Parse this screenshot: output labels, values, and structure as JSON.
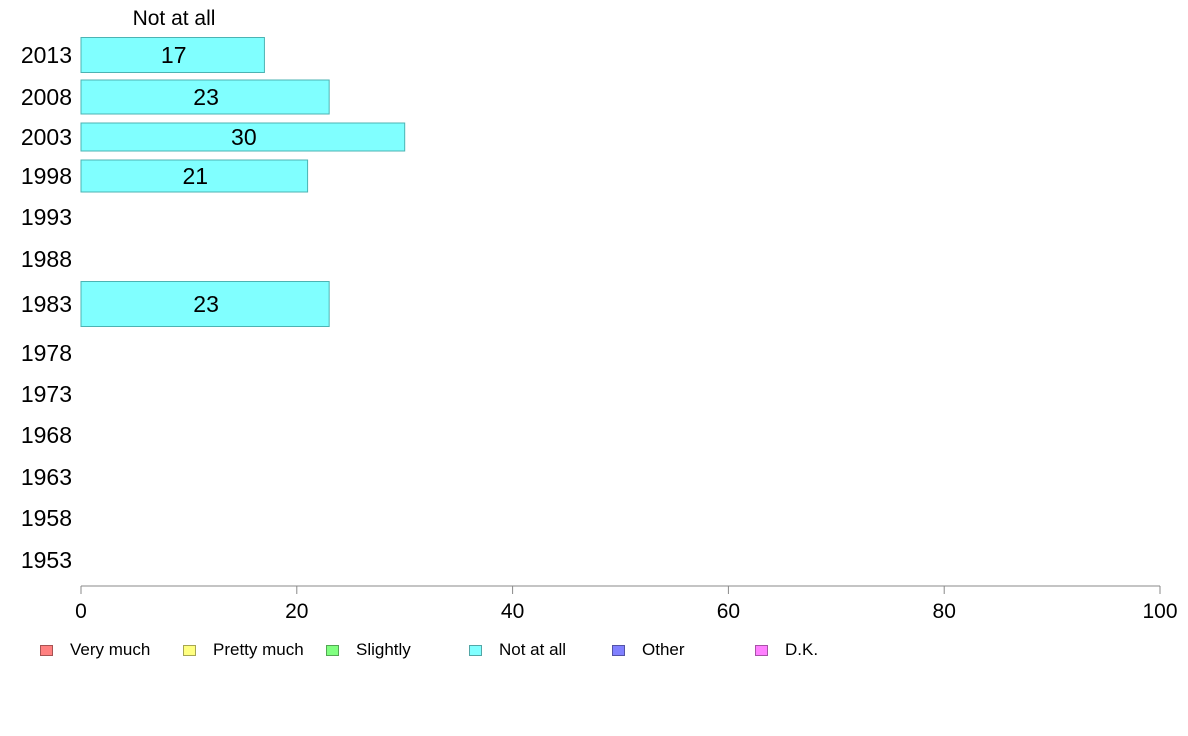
{
  "chart_data": {
    "type": "bar",
    "orientation": "horizontal",
    "series_label": "Not at all",
    "categories": [
      "2013",
      "2008",
      "2003",
      "1998",
      "1993",
      "1988",
      "1983",
      "1978",
      "1973",
      "1968",
      "1963",
      "1958",
      "1953"
    ],
    "values": [
      17,
      23,
      30,
      21,
      null,
      null,
      23,
      null,
      null,
      null,
      null,
      null,
      null
    ],
    "data_labels": [
      "17",
      "23",
      "30",
      "21",
      "",
      "",
      "23",
      "",
      "",
      "",
      "",
      "",
      ""
    ],
    "xlim": [
      0,
      100
    ],
    "x_ticks": [
      "0",
      "20",
      "40",
      "60",
      "80",
      "100"
    ],
    "bar_color": "#80ffff",
    "bar_border_color": "#4cb3b3",
    "axis_color": "#888888",
    "legend_position": "bottom",
    "legend": [
      {
        "label": "Very much",
        "color": "#ff8080"
      },
      {
        "label": "Pretty much",
        "color": "#ffff80"
      },
      {
        "label": "Slightly",
        "color": "#80ff80"
      },
      {
        "label": "Not at all",
        "color": "#80ffff"
      },
      {
        "label": "Other",
        "color": "#8080ff"
      },
      {
        "label": "D.K.",
        "color": "#ff80ff"
      }
    ]
  }
}
